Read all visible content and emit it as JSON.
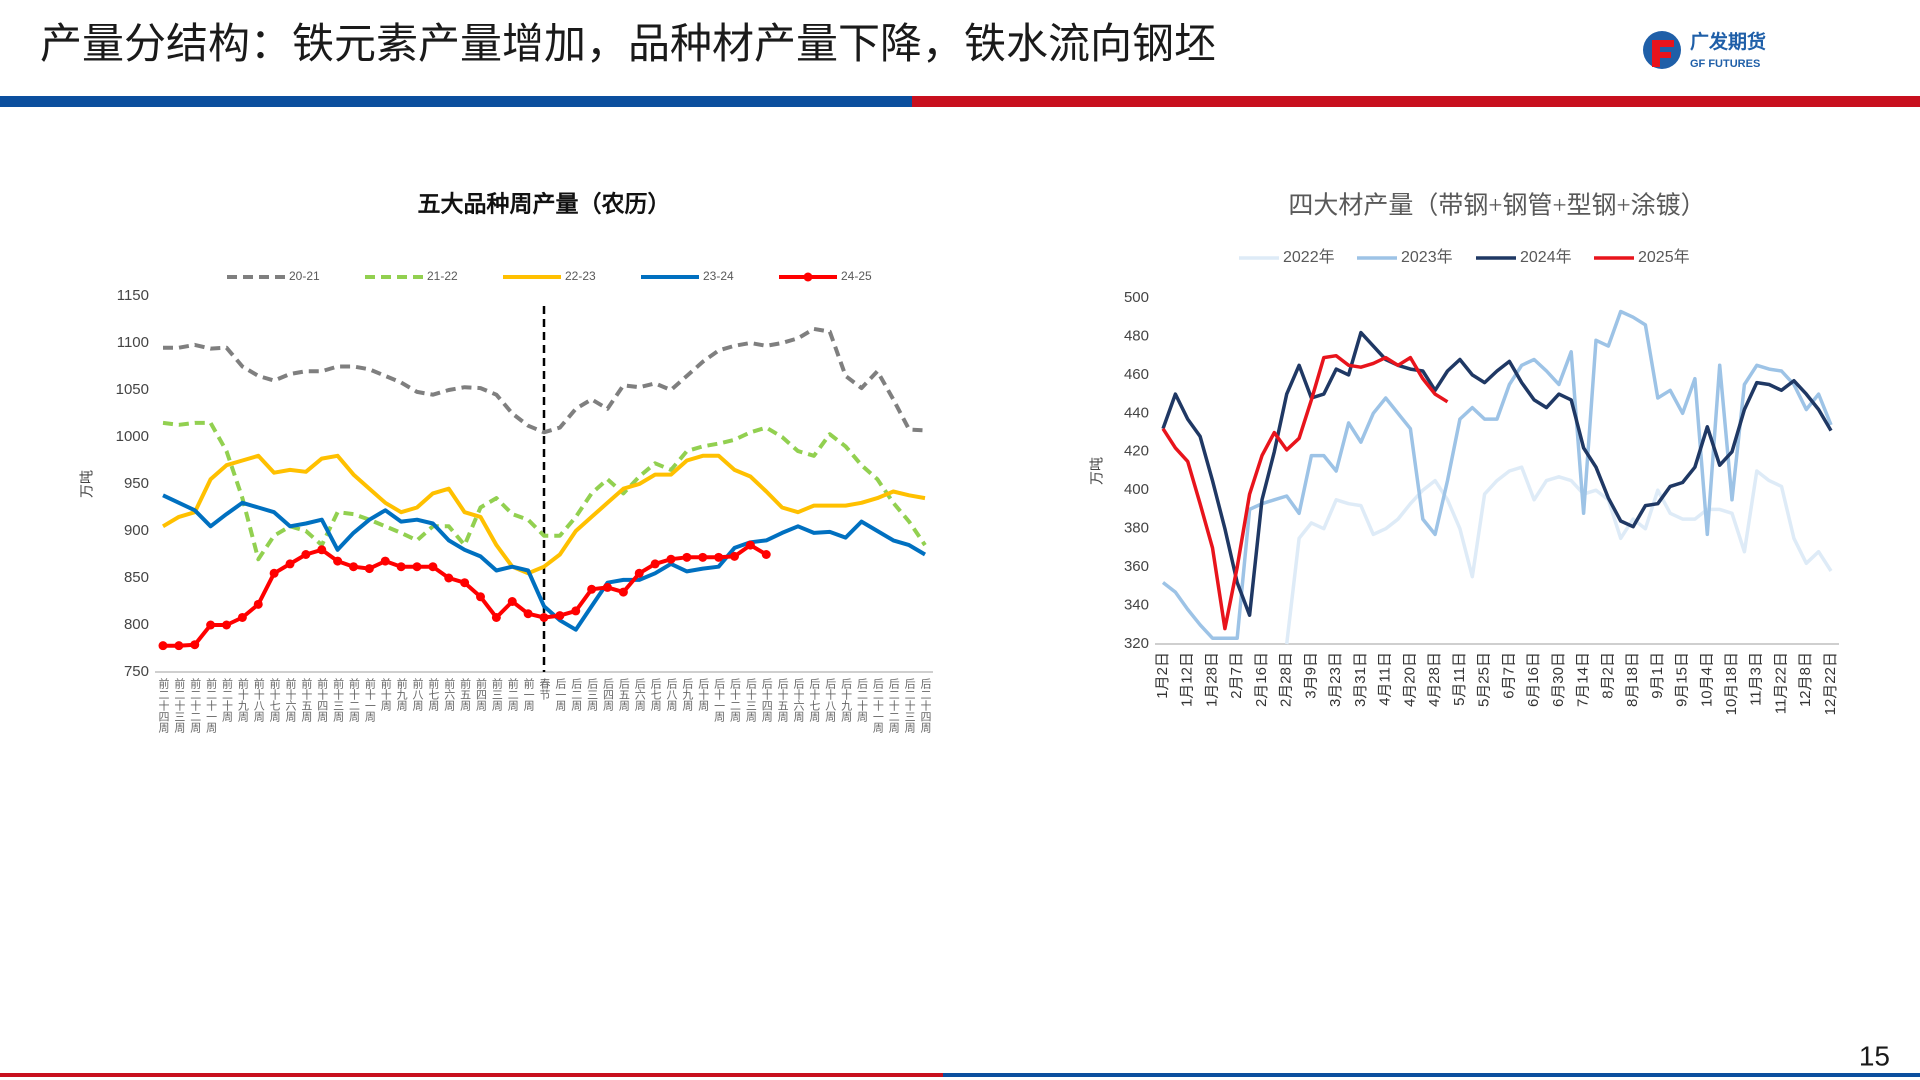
{
  "header": {
    "title": "产量分结构：铁元素产量增加，品种材产量下降，铁水流向钢坯",
    "logo_cn": "广发期货",
    "logo_en": "GF FUTURES"
  },
  "page_number": "15",
  "chart_data": [
    {
      "type": "line",
      "title": "五大品种周产量（农历）",
      "y_label": "万吨",
      "categories": [
        "前二十四周",
        "前二十三周",
        "前二十二周",
        "前二十一周",
        "前二十周",
        "前十九周",
        "前十八周",
        "前十七周",
        "前十六周",
        "前十五周",
        "前十四周",
        "前十三周",
        "前十二周",
        "前十一周",
        "前十周",
        "前九周",
        "前八周",
        "前七周",
        "前六周",
        "前五周",
        "前四周",
        "前三周",
        "前二周",
        "前一周",
        "春节",
        "后一周",
        "后二周",
        "后三周",
        "后四周",
        "后五周",
        "后六周",
        "后七周",
        "后八周",
        "后九周",
        "后十周",
        "后十一周",
        "后十二周",
        "后十三周",
        "后十四周",
        "后十五周",
        "后十六周",
        "后十七周",
        "后十八周",
        "后十九周",
        "后二十周",
        "后二十一周",
        "后二十二周",
        "后二十三周",
        "后二十四周"
      ],
      "series": [
        {
          "name": "20-21",
          "color": "#7f7f7f",
          "style": "dashed",
          "marker": false,
          "values": [
            1095,
            1095,
            1098,
            1094,
            1095,
            1075,
            1065,
            1060,
            1067,
            1070,
            1070,
            1075,
            1075,
            1072,
            1065,
            1058,
            1048,
            1045,
            1050,
            1053,
            1052,
            1045,
            1025,
            1012,
            1005,
            1010,
            1030,
            1040,
            1030,
            1055,
            1053,
            1057,
            1050,
            1065,
            1080,
            1092,
            1097,
            1100,
            1097,
            1100,
            1105,
            1115,
            1112,
            1065,
            1052,
            1070,
            1040,
            1008,
            1007
          ]
        },
        {
          "name": "21-22",
          "color": "#92d050",
          "style": "dashed",
          "marker": false,
          "values": [
            1015,
            1013,
            1015,
            1015,
            985,
            935,
            870,
            895,
            905,
            900,
            885,
            920,
            918,
            912,
            905,
            898,
            890,
            905,
            905,
            885,
            925,
            935,
            918,
            912,
            895,
            895,
            915,
            940,
            955,
            940,
            958,
            972,
            965,
            985,
            990,
            993,
            997,
            1005,
            1010,
            1000,
            985,
            980,
            1003,
            990,
            970,
            955,
            930,
            910,
            885
          ]
        },
        {
          "name": "22-23",
          "color": "#ffc000",
          "style": "solid",
          "marker": false,
          "values": [
            905,
            915,
            920,
            955,
            970,
            975,
            980,
            962,
            965,
            963,
            977,
            980,
            960,
            945,
            930,
            920,
            925,
            940,
            945,
            920,
            915,
            885,
            862,
            855,
            862,
            875,
            900,
            915,
            930,
            945,
            950,
            960,
            960,
            975,
            980,
            980,
            965,
            958,
            942,
            925,
            920,
            927,
            927,
            927,
            930,
            935,
            942,
            938,
            935
          ]
        },
        {
          "name": "23-24",
          "color": "#0070c0",
          "style": "solid",
          "marker": false,
          "values": [
            938,
            930,
            922,
            905,
            918,
            930,
            925,
            920,
            905,
            908,
            912,
            880,
            898,
            912,
            922,
            910,
            912,
            908,
            890,
            880,
            873,
            858,
            862,
            858,
            820,
            805,
            795,
            820,
            845,
            848,
            848,
            855,
            865,
            857,
            860,
            862,
            882,
            888,
            890,
            898,
            905,
            898,
            899,
            893,
            910,
            900,
            890,
            885,
            875
          ]
        },
        {
          "name": "24-25",
          "color": "#ff0000",
          "style": "solid",
          "marker": true,
          "values": [
            778,
            778,
            779,
            800,
            800,
            808,
            822,
            855,
            865,
            875,
            880,
            868,
            862,
            860,
            868,
            862,
            862,
            862,
            850,
            845,
            830,
            808,
            825,
            812,
            808,
            810,
            815,
            838,
            840,
            835,
            855,
            865,
            870,
            872,
            872,
            872,
            873,
            885,
            875,
            null,
            null,
            null,
            null,
            null,
            null,
            null,
            null,
            null,
            null
          ]
        }
      ],
      "ylim": [
        750,
        1150
      ],
      "yticks": [
        750,
        800,
        850,
        900,
        950,
        1000,
        1050,
        1100,
        1150
      ],
      "grid": false,
      "legend": "top"
    },
    {
      "type": "line",
      "title": "四大材产量（带钢+钢管+型钢+涂镀）",
      "y_label": "万吨",
      "categories": [
        "1月2日",
        null,
        "1月12日",
        null,
        "1月28日",
        null,
        "2月7日",
        null,
        "2月16日",
        null,
        "2月28日",
        null,
        "3月9日",
        null,
        "3月23日",
        null,
        "3月31日",
        null,
        "4月11日",
        null,
        "4月20日",
        null,
        "4月28日",
        null,
        "5月11日",
        null,
        "5月25日",
        null,
        "6月7日",
        null,
        "6月16日",
        null,
        "6月30日",
        null,
        "7月14日",
        null,
        "8月2日",
        null,
        "8月18日",
        null,
        "9月1日",
        null,
        "9月15日",
        null,
        "10月4日",
        null,
        "10月18日",
        null,
        "11月3日",
        null,
        "11月22日",
        null,
        "12月8日",
        null,
        "12月22日"
      ],
      "series": [
        {
          "name": "2022年",
          "color": "#deebf7",
          "style": "solid",
          "marker": false,
          "values": [
            null,
            null,
            null,
            null,
            null,
            null,
            null,
            null,
            null,
            null,
            320,
            375,
            383,
            380,
            395,
            393,
            392,
            377,
            380,
            385,
            393,
            400,
            405,
            395,
            380,
            355,
            398,
            405,
            410,
            412,
            395,
            405,
            407,
            405,
            398,
            400,
            395,
            375,
            385,
            380,
            400,
            388,
            385,
            385,
            390,
            390,
            388,
            368,
            410,
            405,
            402,
            375,
            362,
            368,
            358
          ]
        },
        {
          "name": "2023年",
          "color": "#9dc3e6",
          "style": "solid",
          "marker": false,
          "values": [
            352,
            347,
            338,
            330,
            323,
            323,
            323,
            390,
            393,
            395,
            397,
            388,
            418,
            418,
            410,
            435,
            425,
            440,
            448,
            440,
            432,
            385,
            377,
            405,
            437,
            443,
            437,
            437,
            455,
            465,
            468,
            462,
            455,
            472,
            388,
            478,
            475,
            493,
            490,
            486,
            448,
            452,
            440,
            458,
            377,
            465,
            395,
            455,
            465,
            463,
            462,
            455,
            442,
            450,
            434
          ]
        },
        {
          "name": "2024年",
          "color": "#1f3864",
          "style": "solid",
          "marker": false,
          "values": [
            432,
            450,
            437,
            428,
            405,
            380,
            352,
            335,
            395,
            420,
            450,
            465,
            448,
            450,
            463,
            460,
            482,
            475,
            468,
            465,
            463,
            462,
            452,
            462,
            468,
            460,
            456,
            462,
            467,
            456,
            447,
            443,
            450,
            447,
            422,
            412,
            396,
            384,
            381,
            392,
            393,
            402,
            404,
            412,
            433,
            413,
            420,
            442,
            456,
            455,
            452,
            457,
            450,
            442,
            431
          ]
        },
        {
          "name": "2025年",
          "color": "#e8141c",
          "style": "solid",
          "marker": false,
          "values": [
            432,
            422,
            415,
            393,
            370,
            328,
            360,
            398,
            418,
            430,
            421,
            427,
            447,
            469,
            470,
            465,
            464,
            466,
            469,
            465,
            469,
            458,
            450,
            446,
            null,
            null,
            null,
            null,
            null,
            null,
            null,
            null,
            null,
            null,
            null,
            null,
            null,
            null,
            null,
            null,
            null,
            null,
            null,
            null,
            null,
            null,
            null,
            null,
            null,
            null,
            null,
            null,
            null,
            null,
            null
          ]
        }
      ],
      "ylim": [
        320,
        500
      ],
      "yticks": [
        320,
        340,
        360,
        380,
        400,
        420,
        440,
        460,
        480,
        500
      ],
      "grid": false,
      "legend": "top"
    }
  ]
}
